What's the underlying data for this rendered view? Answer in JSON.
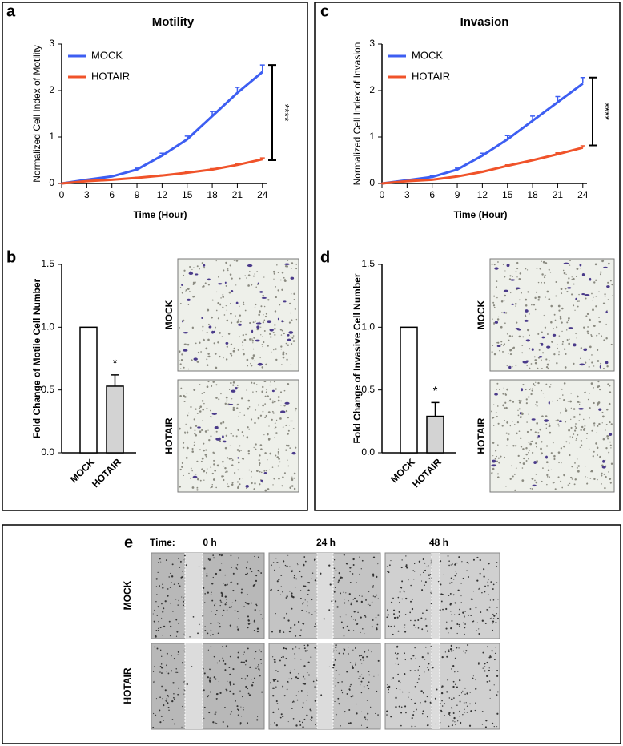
{
  "chart_data": [
    {
      "panel": "a",
      "type": "line",
      "title": "Motility",
      "xlabel": "Time (Hour)",
      "ylabel": "Normalized Cell Index of Motility",
      "x": [
        0,
        3,
        6,
        9,
        12,
        15,
        18,
        21,
        24
      ],
      "xlim": [
        0,
        24.5
      ],
      "xticks": [
        0,
        3,
        6,
        9,
        12,
        15,
        18,
        21,
        24
      ],
      "ylim": [
        0,
        3
      ],
      "yticks": [
        0,
        1,
        2,
        3
      ],
      "legend": "upper left",
      "series": [
        {
          "name": "MOCK",
          "color": "#3d5ef2",
          "values": [
            0,
            0.08,
            0.15,
            0.3,
            0.6,
            0.95,
            1.45,
            1.95,
            2.4
          ],
          "errors": [
            0,
            0.01,
            0.02,
            0.03,
            0.05,
            0.07,
            0.1,
            0.12,
            0.15
          ]
        },
        {
          "name": "HOTAIR",
          "color": "#f0532a",
          "values": [
            0,
            0.05,
            0.08,
            0.12,
            0.17,
            0.23,
            0.3,
            0.4,
            0.52
          ],
          "errors": [
            0,
            0.005,
            0.01,
            0.01,
            0.01,
            0.015,
            0.02,
            0.02,
            0.03
          ]
        }
      ],
      "annotation": {
        "text": "****",
        "range": [
          0.5,
          2.55
        ]
      }
    },
    {
      "panel": "b",
      "type": "bar",
      "ylabel": "Fold Change of Motile Cell Number",
      "categories": [
        "MOCK",
        "HOTAIR"
      ],
      "values": [
        1.0,
        0.53
      ],
      "errors": [
        0,
        0.09
      ],
      "colors": [
        "#ffffff",
        "#d3d3d3"
      ],
      "ylim": [
        0,
        1.5
      ],
      "yticks": [
        {
          "value": 0,
          "label": "0.0"
        },
        0.5,
        {
          "value": 1,
          "label": "1.0"
        },
        1.5
      ],
      "annotation": "*",
      "image_labels": [
        "MOCK",
        "HOTAIR"
      ]
    },
    {
      "panel": "c",
      "type": "line",
      "title": "Invasion",
      "xlabel": "Time (Hour)",
      "ylabel": "Normalized Cell Index of Invasion",
      "x": [
        0,
        3,
        6,
        9,
        12,
        15,
        18,
        21,
        24
      ],
      "xlim": [
        0,
        24.5
      ],
      "xticks": [
        0,
        3,
        6,
        9,
        12,
        15,
        18,
        21,
        24
      ],
      "ylim": [
        0,
        3
      ],
      "yticks": [
        0,
        1,
        2,
        3
      ],
      "legend": "upper left",
      "series": [
        {
          "name": "MOCK",
          "color": "#3d5ef2",
          "values": [
            0,
            0.07,
            0.14,
            0.3,
            0.6,
            0.95,
            1.35,
            1.75,
            2.15
          ],
          "errors": [
            0,
            0.01,
            0.02,
            0.03,
            0.05,
            0.08,
            0.1,
            0.12,
            0.13
          ]
        },
        {
          "name": "HOTAIR",
          "color": "#f0532a",
          "values": [
            0,
            0.05,
            0.08,
            0.15,
            0.25,
            0.38,
            0.5,
            0.63,
            0.77
          ],
          "errors": [
            0,
            0.005,
            0.01,
            0.01,
            0.015,
            0.02,
            0.02,
            0.03,
            0.04
          ]
        }
      ],
      "annotation": {
        "text": "****",
        "range": [
          0.82,
          2.28
        ]
      }
    },
    {
      "panel": "d",
      "type": "bar",
      "ylabel": "Fold Change of Invasive Cell Number",
      "categories": [
        "MOCK",
        "HOTAIR"
      ],
      "values": [
        1.0,
        0.29
      ],
      "errors": [
        0,
        0.11
      ],
      "colors": [
        "#ffffff",
        "#d3d3d3"
      ],
      "ylim": [
        0,
        1.5
      ],
      "yticks": [
        {
          "value": 0,
          "label": "0.0"
        },
        0.5,
        {
          "value": 1,
          "label": "1.0"
        },
        1.5
      ],
      "annotation": "*",
      "image_labels": [
        "MOCK",
        "HOTAIR"
      ]
    }
  ],
  "wound_healing": {
    "panel": "e",
    "time_label": "Time:",
    "times": [
      "0 h",
      "24 h",
      "48 h"
    ],
    "rows": [
      "MOCK",
      "HOTAIR"
    ]
  }
}
